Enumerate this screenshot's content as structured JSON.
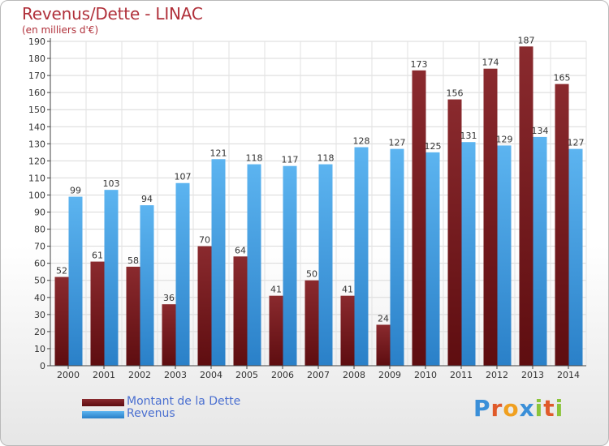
{
  "title": "Revenus/Dette - LINAC",
  "subtitle": "(en milliers d'€)",
  "legend": {
    "debt_label": "Montant de la Dette",
    "revenue_label": "Revenus"
  },
  "logo": {
    "text": "Proxiti",
    "letters": [
      "P",
      "r",
      "o",
      "x",
      "i",
      "t",
      "i"
    ]
  },
  "colors": {
    "debt": "#7a1f22",
    "revenue": "#3fa0e8",
    "title": "#b0303a",
    "legend_text": "#4a6fd0"
  },
  "chart_data": {
    "type": "bar",
    "categories": [
      "2000",
      "2001",
      "2002",
      "2003",
      "2004",
      "2005",
      "2006",
      "2007",
      "2008",
      "2009",
      "2010",
      "2011",
      "2012",
      "2013",
      "2014"
    ],
    "series": [
      {
        "name": "Montant de la Dette",
        "values": [
          52,
          61,
          58,
          36,
          70,
          64,
          41,
          50,
          41,
          24,
          173,
          156,
          174,
          187,
          165
        ]
      },
      {
        "name": "Revenus",
        "values": [
          99,
          103,
          94,
          107,
          121,
          118,
          117,
          118,
          128,
          127,
          125,
          131,
          129,
          134,
          127
        ]
      }
    ],
    "ylim": [
      0,
      190
    ],
    "yticks": [
      0,
      10,
      20,
      30,
      40,
      50,
      60,
      70,
      80,
      90,
      100,
      110,
      120,
      130,
      140,
      150,
      160,
      170,
      180,
      190
    ],
    "grid": true,
    "legend_position": "bottom-left"
  }
}
